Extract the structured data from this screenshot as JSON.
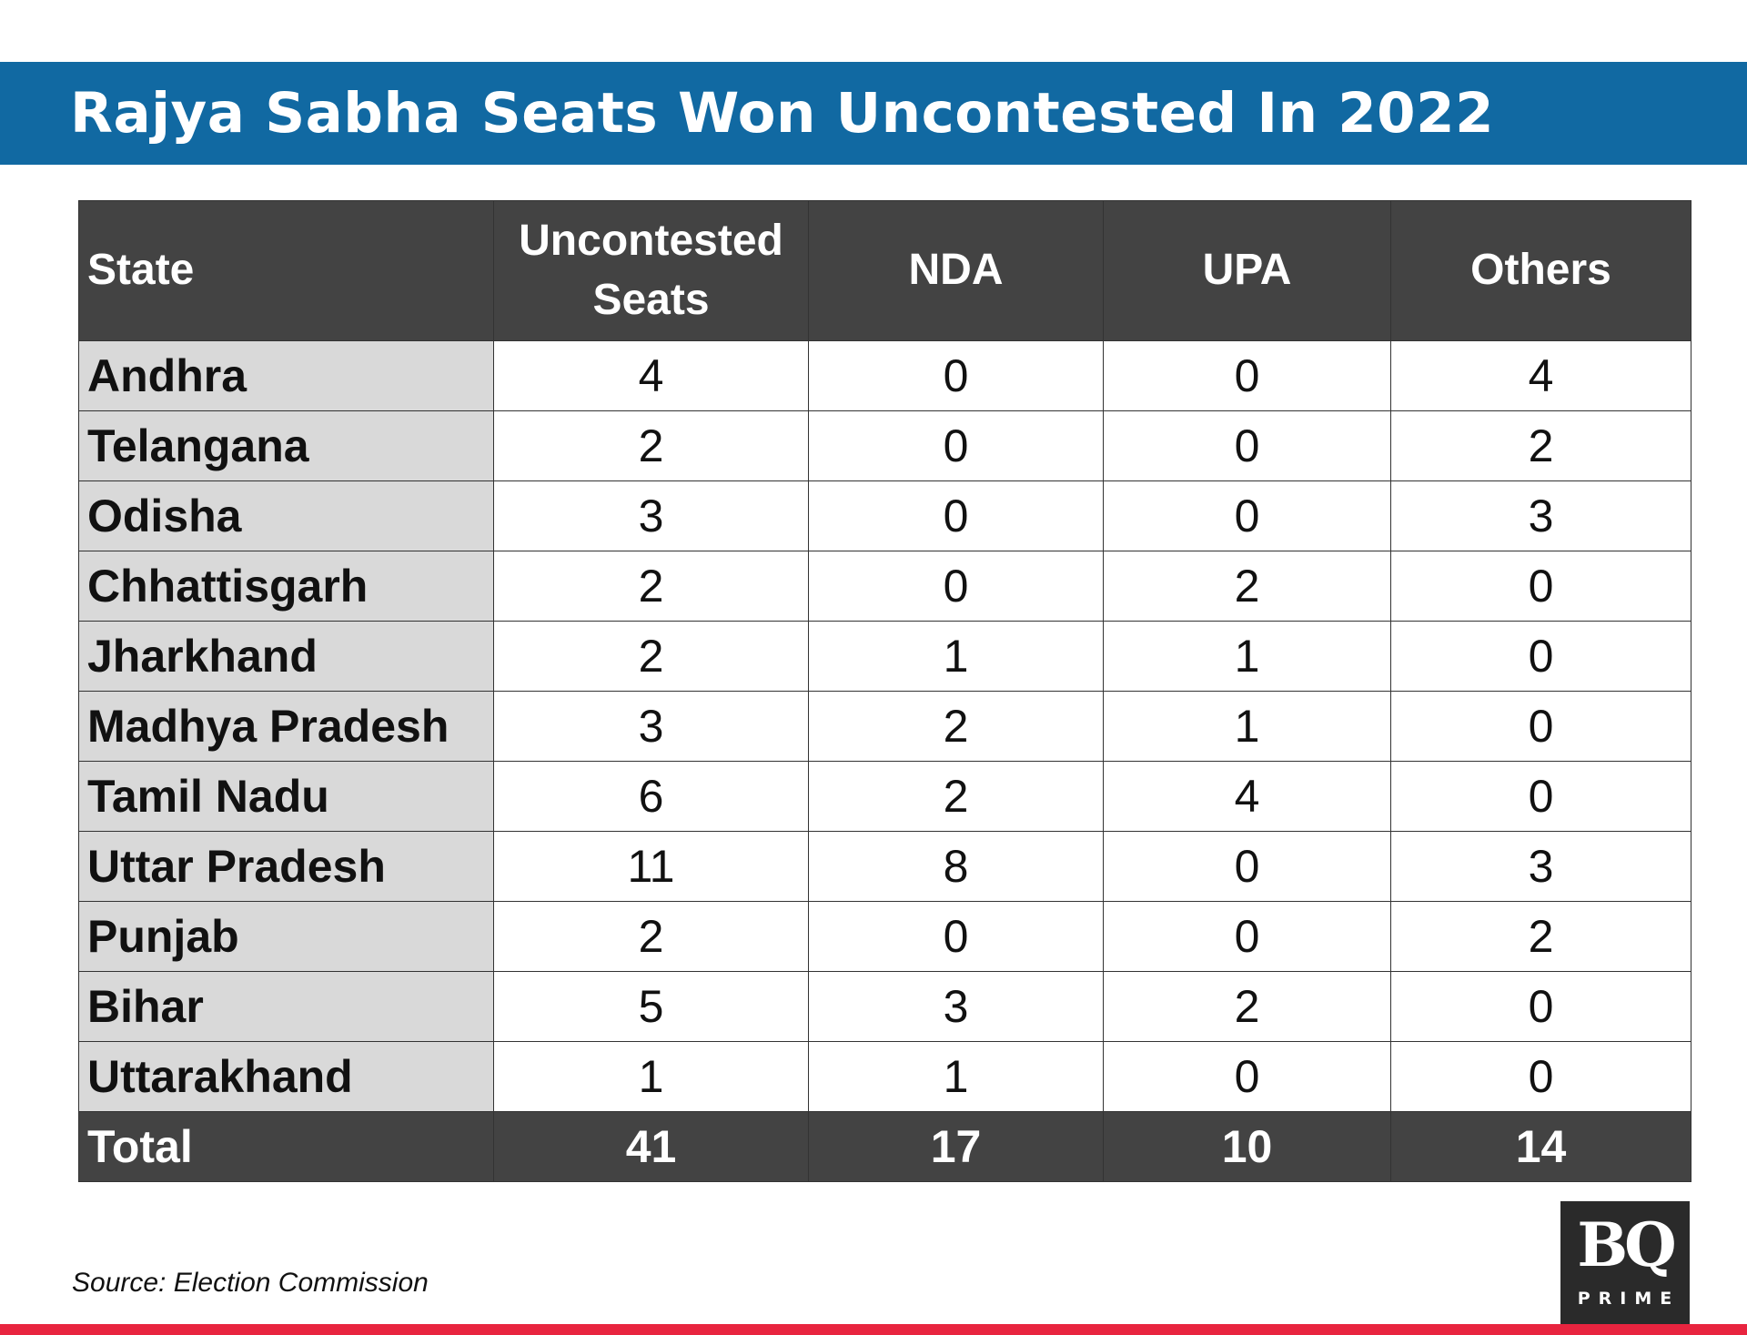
{
  "colors": {
    "title_bar": "#1169a2",
    "header_bg": "#434343",
    "state_cell_bg": "#d9d9d9",
    "bottom_bar": "#e8243f",
    "logo_bg": "#2a2a2a"
  },
  "chart_data": {
    "type": "table",
    "title": "Rajya Sabha Seats Won Uncontested In 2022",
    "columns": [
      "State",
      "Uncontested Seats",
      "NDA",
      "UPA",
      "Others"
    ],
    "rows": [
      [
        "Andhra",
        "4",
        "0",
        "0",
        "4"
      ],
      [
        "Telangana",
        "2",
        "0",
        "0",
        "2"
      ],
      [
        "Odisha",
        "3",
        "0",
        "0",
        "3"
      ],
      [
        "Chhattisgarh",
        "2",
        "0",
        "2",
        "0"
      ],
      [
        "Jharkhand",
        "2",
        "1",
        "1",
        "0"
      ],
      [
        "Madhya Pradesh",
        "3",
        "2",
        "1",
        "0"
      ],
      [
        "Tamil Nadu",
        "6",
        "2",
        "4",
        "0"
      ],
      [
        "Uttar Pradesh",
        "11",
        "8",
        "0",
        "3"
      ],
      [
        "Punjab",
        "2",
        "0",
        "0",
        "2"
      ],
      [
        "Bihar",
        "5",
        "3",
        "2",
        "0"
      ],
      [
        "Uttarakhand",
        "1",
        "1",
        "0",
        "0"
      ]
    ],
    "total": [
      "Total",
      "41",
      "17",
      "10",
      "14"
    ],
    "source": "Source: Election Commission"
  },
  "logo": {
    "main": "BQ",
    "sub": "PRIME"
  }
}
